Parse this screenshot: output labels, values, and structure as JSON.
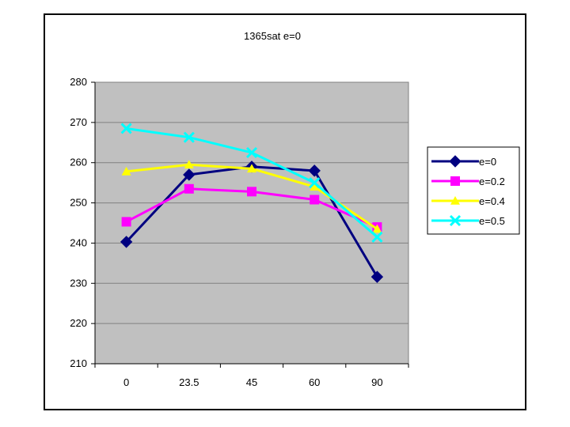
{
  "chart_data": {
    "type": "line",
    "title": "1365sat e=0",
    "categories": [
      "0",
      "23.5",
      "45",
      "60",
      "90"
    ],
    "ylim": [
      210,
      280
    ],
    "yticks": [
      210,
      220,
      230,
      240,
      250,
      260,
      270,
      280
    ],
    "grid": true,
    "legend_position": "right",
    "plot_background": "#c0c0c0",
    "series": [
      {
        "name": "e=0",
        "color": "#000080",
        "marker": "diamond",
        "values": [
          240.3,
          257.0,
          259.0,
          258.0,
          231.6
        ]
      },
      {
        "name": "e=0.2",
        "color": "#ff00ff",
        "marker": "square",
        "values": [
          245.3,
          253.5,
          252.8,
          250.8,
          244.0
        ]
      },
      {
        "name": "e=0.4",
        "color": "#ffff00",
        "marker": "triangle",
        "values": [
          257.8,
          259.5,
          258.5,
          254.0,
          243.5
        ]
      },
      {
        "name": "e=0.5",
        "color": "#00ffff",
        "marker": "x",
        "values": [
          268.5,
          266.3,
          262.5,
          255.0,
          241.5
        ]
      }
    ]
  }
}
